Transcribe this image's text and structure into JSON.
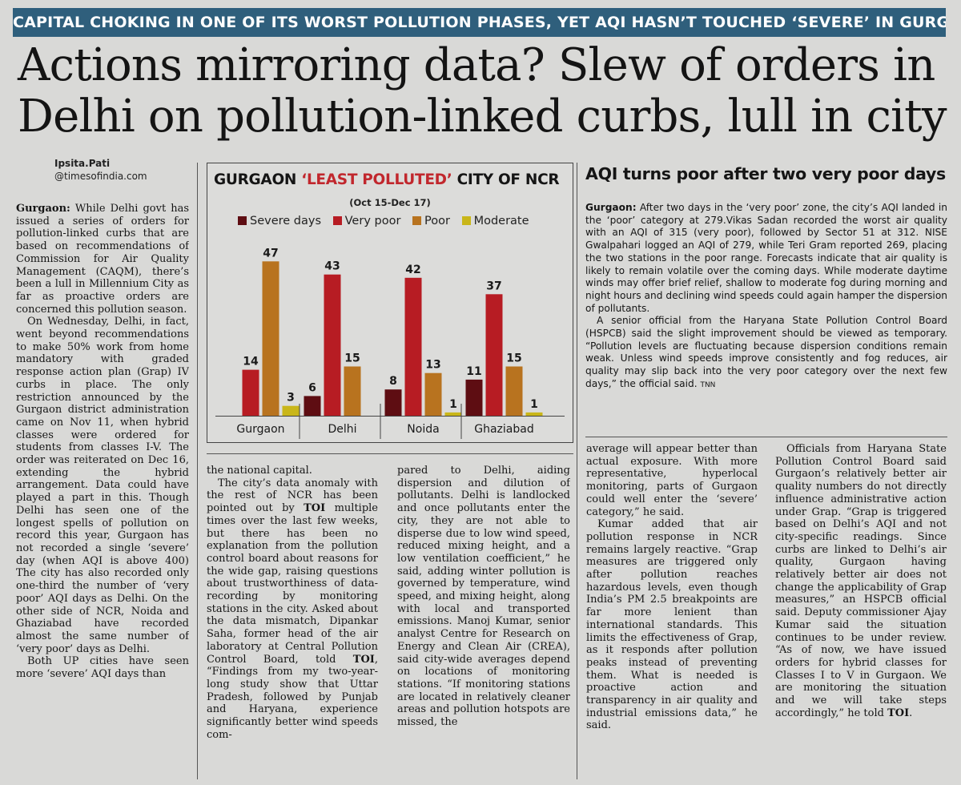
{
  "banner": "CAPITAL CHOKING IN ONE OF ITS WORST POLLUTION PHASES, YET AQI HASN’T TOUCHED ‘SEVERE’ IN GURGAON",
  "headline": {
    "line1": "Actions mirroring data? Slew of orders in",
    "line2": "Delhi on pollution-linked curbs, lull in city"
  },
  "byline": {
    "name": "Ipsita.Pati",
    "handle": "@timesofindia.com"
  },
  "chart": {
    "title_pre": "GURGAON ",
    "title_hl": "‘LEAST POLLUTED’",
    "title_post": " CITY OF NCR",
    "subtitle": "(Oct 15-Dec 17)"
  },
  "chart_data": {
    "type": "bar",
    "categories": [
      "Gurgaon",
      "Delhi",
      "Noida",
      "Ghaziabad"
    ],
    "series": [
      {
        "name": "Severe days",
        "color": "#5e0d12",
        "values": [
          0,
          6,
          8,
          11
        ]
      },
      {
        "name": "Very poor",
        "color": "#b71c23",
        "values": [
          14,
          43,
          42,
          37
        ]
      },
      {
        "name": "Poor",
        "color": "#b8731f",
        "values": [
          47,
          15,
          13,
          15
        ]
      },
      {
        "name": "Moderate",
        "color": "#c9b619",
        "values": [
          3,
          0,
          1,
          1
        ]
      }
    ],
    "ylim": [
      0,
      50
    ]
  },
  "sidebar": {
    "title": "AQI turns poor after two very poor days",
    "p1_lead": "Gurgaon:",
    "p1": " After two days in the ‘very poor’ zone, the city’s AQI landed in the ‘poor’ category at 279.Vikas Sadan recorded the worst air quality with an AQI of 315 (very poor), followed by Sector 51 at 312. NISE Gwalpahari logged an AQI of 279, while Teri Gram reported 269, placing the two stations in the poor range. Forecasts indicate that air quality is likely to remain volatile over the coming days. While moderate daytime winds may offer brief relief, shallow to moderate fog during morning and night hours and declining wind speeds could again hamper the dispersion of pollutants.",
    "p2": "A senior official from the Haryana State Pollution Control Board (HSPCB) said the slight improvement should be viewed as temporary. “Pollution levels are fluctuating because dispersion conditions remain weak. Unless wind speeds improve consistently and fog reduces, air quality may slip back into the very poor category over the next few days,” the official said.",
    "tag": "TNN"
  },
  "col1": {
    "p1_lead": "Gurgaon:",
    "p1": " While Delhi govt has issued a series of orders for pollution-linked curbs that are based on recommendations of Commission for Air Quality Management (CAQM), there’s been a lull in Millennium City as far as proactive orders are concerned this pollution season.",
    "p2": "On Wednesday, Delhi, in fact, went beyond recommendations to make 50% work from home mandatory with graded response action plan (Grap) IV curbs in place. The only restriction announced by the Gurgaon district administration came on Nov 11, when hybrid classes were ordered for students from classes I-V. The order was reiterated on Dec 16, extending the hybrid arrangement. Data could have played a part in this. Though Delhi has seen one of the longest spells of pollution on record this year, Gurgaon has not recorded a single ‘severe’ day (when AQI is above 400) The city has also recorded only one-third the number of ‘very poor’ AQI days as Delhi. On the other side of NCR, Noida and Ghaziabad have recorded almost the same number of ‘very poor’ days as Delhi.",
    "p3": "Both UP cities have seen more ‘severe’ AQI days than"
  },
  "col2": {
    "p1": "the national capital.",
    "p2a": "The city’s data anomaly with the rest of NCR has been pointed out by ",
    "p2_toi1": "TOI",
    "p2b": " multiple times over the last few weeks, but there has been no explanation from the pollution control board about reasons for the wide gap, raising questions about trustworthiness of data-recording by monitoring stations in the city. Asked about the data mismatch, Dipankar Saha, former head of the air laboratory at Central Pollution Control Board, told ",
    "p2_toi2": "TOI",
    "p2c": ", “Findings from my two-year-long study show that Uttar Pradesh, followed by Punjab and Haryana, experience significantly better wind speeds com-"
  },
  "col3": {
    "p1": "pared to Delhi, aiding dispersion and dilution of pollutants. Delhi is landlocked and once pollutants enter the city, they are not able to disperse due to low wind speed, reduced mixing height, and a low ventilation coefficient,” he said, adding winter pollution is governed by temperature, wind speed, and mixing height, along with local and transported emissions. Manoj Kumar, senior analyst Centre for Research on Energy and Clean Air (CREA), said city-wide averages depend on locations of monitoring stations. “If monitoring stations are located in relatively cleaner areas and pollution hotspots are missed, the"
  },
  "col4": {
    "p1": "average will appear better than actual exposure. With more representative, hyperlocal monitoring, parts of Gurgaon could well enter the ‘severe’ category,” he said.",
    "p2": "Kumar added that air pollution response in NCR remains largely reactive. “Grap measures are triggered only after pollution reaches hazardous levels, even though India’s PM 2.5 breakpoints are far more lenient than international standards. This limits the effectiveness of Grap, as it responds after pollution peaks instead of preventing them. What is needed is proactive action and transparency in air quality and industrial emissions data,” he said."
  },
  "col5": {
    "p1": "Officials from Haryana State Pollution Control Board said Gurgaon’s relatively better air quality numbers do not directly influence administrative action under Grap. “Grap is triggered based on Delhi’s AQI and not city-specific readings. Since curbs are linked to Delhi’s air quality, Gurgaon having relatively better air does not change the applicability of Grap measures,” an HSPCB official said. Deputy commissioner Ajay Kumar said the situation continues to be under review. “As of now, we have issued orders for hybrid classes for Classes I to V in Gurgaon. We are monitoring the situation and we will take steps accordingly,” he told ",
    "toi": "TOI",
    "end": "."
  }
}
